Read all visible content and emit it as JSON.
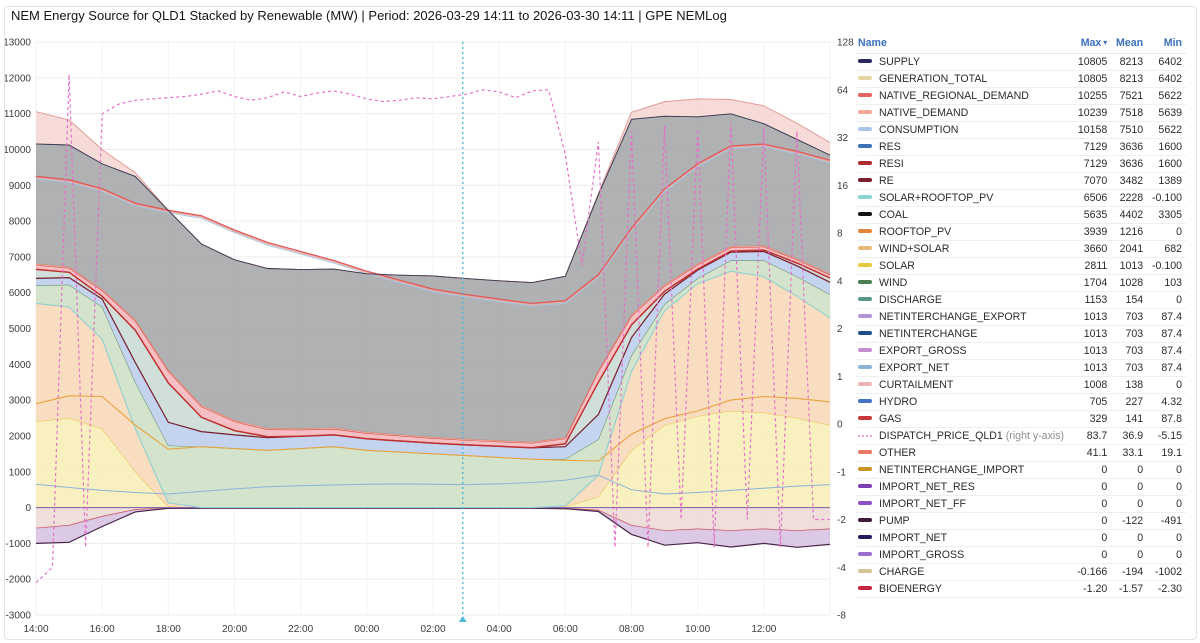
{
  "title": "NEM Energy Source for QLD1 Stacked by Renewable (MW) | Period: 2026-03-29 14:11 to 2026-03-30 14:11 | GPE NEMLog",
  "chart_data": {
    "type": "area",
    "title": "NEM Energy Source for QLD1 Stacked by Renewable (MW)",
    "x_tick_labels": [
      "14:00",
      "16:00",
      "18:00",
      "20:00",
      "22:00",
      "00:00",
      "02:00",
      "04:00",
      "06:00",
      "08:00",
      "10:00",
      "12:00"
    ],
    "hours_span": 24,
    "left_axis": {
      "min": -3000,
      "max": 13000,
      "step": 1000,
      "unit": "MW"
    },
    "right_axis": {
      "scale": "symlog",
      "ticks": [
        128,
        64,
        32,
        16,
        8,
        4,
        2,
        1,
        0,
        -1,
        -2,
        -4,
        -8
      ],
      "label": "DISPATCH_PRICE_QLD1"
    },
    "areas": [
      {
        "name": "SOLAR",
        "fill": "#f8eeb9",
        "line": "#e3c348",
        "values": [
          2400,
          2500,
          2200,
          1000,
          30,
          0,
          0,
          0,
          0,
          0,
          0,
          0,
          0,
          0,
          0,
          0,
          20,
          300,
          1600,
          2300,
          2550,
          2700,
          2650,
          2500,
          2300
        ]
      },
      {
        "name": "ROOFTOP_PV",
        "fill": "#f8d9ba",
        "line": "#edb06a",
        "values": [
          3300,
          3100,
          2500,
          1200,
          100,
          0,
          0,
          0,
          0,
          0,
          0,
          0,
          0,
          0,
          0,
          0,
          30,
          600,
          2200,
          3200,
          3700,
          3900,
          3800,
          3400,
          3000
        ]
      },
      {
        "name": "WIND",
        "fill": "#cfe0c5",
        "line": "#5c8a5c",
        "values": [
          500,
          620,
          900,
          1300,
          1600,
          1700,
          1650,
          1600,
          1650,
          1700,
          1600,
          1550,
          1500,
          1450,
          1400,
          1350,
          1300,
          1000,
          450,
          180,
          150,
          300,
          450,
          550,
          650
        ]
      },
      {
        "name": "HYDRO",
        "fill": "#becfed",
        "line": "#6b8cc8",
        "values": [
          200,
          200,
          220,
          550,
          650,
          420,
          380,
          350,
          340,
          330,
          320,
          310,
          300,
          300,
          310,
          320,
          350,
          700,
          500,
          280,
          230,
          230,
          250,
          300,
          340
        ]
      },
      {
        "name": "DISCHARGE",
        "fill": "#cbdcd6",
        "line": "#6b9e92",
        "values": [
          250,
          150,
          80,
          900,
          1100,
          400,
          120,
          30,
          0,
          0,
          0,
          0,
          0,
          0,
          0,
          0,
          80,
          900,
          350,
          80,
          30,
          30,
          40,
          80,
          120
        ]
      },
      {
        "name": "GAS",
        "fill": "#f4b8bc",
        "line": "#c63939",
        "values": [
          120,
          120,
          160,
          260,
          329,
          300,
          250,
          200,
          180,
          165,
          155,
          145,
          135,
          130,
          130,
          130,
          145,
          300,
          250,
          150,
          115,
          100,
          95,
          90,
          90
        ]
      },
      {
        "name": "OTHER",
        "fill": "#f3b9a8",
        "line": "#e87a64",
        "values": [
          35,
          35,
          36,
          38,
          40,
          40,
          38,
          36,
          35,
          34,
          33,
          33,
          33,
          32,
          32,
          32,
          33,
          38,
          41,
          39,
          37,
          35,
          34,
          33,
          33
        ]
      },
      {
        "name": "COAL",
        "fill": "#a7a8ab",
        "line": "#55555c",
        "values": [
          3350,
          3400,
          3500,
          4000,
          4450,
          4500,
          4480,
          4460,
          4440,
          4430,
          4420,
          4450,
          4500,
          4480,
          4460,
          4450,
          4500,
          4900,
          5450,
          4700,
          4100,
          3700,
          3400,
          3330,
          3310
        ]
      }
    ],
    "curtailment": {
      "name": "CURTAILMENT",
      "fill": "#f5d7d5",
      "line": "#e39b96",
      "values": [
        900,
        700,
        400,
        100,
        0,
        0,
        0,
        0,
        0,
        0,
        0,
        0,
        0,
        0,
        0,
        0,
        0,
        30,
        200,
        400,
        500,
        400,
        500,
        450,
        350
      ]
    },
    "neg_areas": [
      {
        "name": "CHARGE",
        "fill": "#ecd9d4",
        "line": "#cc4c55",
        "values": [
          -580,
          -500,
          -250,
          -60,
          -20,
          -20,
          -20,
          -20,
          -20,
          -20,
          -20,
          -20,
          -20,
          -20,
          -20,
          -20,
          -30,
          -80,
          -500,
          -650,
          -600,
          -650,
          -600,
          -650,
          -600
        ]
      },
      {
        "name": "PUMP",
        "fill": "#d5c0e0",
        "line": "#4a2548",
        "values": [
          -420,
          -470,
          -280,
          -60,
          0,
          0,
          0,
          0,
          0,
          0,
          0,
          0,
          0,
          0,
          0,
          0,
          0,
          -30,
          -250,
          -400,
          -380,
          -450,
          -400,
          -460,
          -430
        ]
      }
    ],
    "lines": [
      {
        "name": "CONSUMPTION",
        "color": "#a9c6e8",
        "width": 1.0,
        "base": "demand",
        "offset": -70
      },
      {
        "name": "NATIVE_DEMAND",
        "color": "#ecaa94",
        "width": 1.0,
        "base": "demand",
        "offset": -35
      },
      {
        "name": "NATIVE_REGIONAL_DEMAND",
        "color": "#e0575c",
        "width": 1.3,
        "values": [
          9250,
          9150,
          8900,
          8500,
          8300,
          8150,
          7750,
          7400,
          7150,
          6900,
          6600,
          6350,
          6100,
          5950,
          5820,
          5700,
          5780,
          6500,
          7800,
          8900,
          9600,
          10100,
          10150,
          9950,
          9700
        ]
      },
      {
        "name": "EXPORT_NET",
        "color": "#8ab4d8",
        "width": 1.0,
        "values": [
          650,
          560,
          480,
          420,
          380,
          450,
          520,
          580,
          610,
          630,
          650,
          660,
          650,
          640,
          660,
          700,
          760,
          900,
          500,
          380,
          420,
          480,
          540,
          600,
          640
        ]
      }
    ],
    "derived_lines": [
      {
        "name": "SOLAR+ROOFTOP_PV",
        "at": "cum:ROOFTOP_PV",
        "color": "#8ed2d4",
        "width": 1.1
      },
      {
        "name": "WIND+SOLAR",
        "at": "sum:SOLAR,WIND",
        "color": "#e8a23f",
        "width": 1.1
      },
      {
        "name": "RE",
        "at": "cum:HYDRO",
        "color": "#7a1f2e",
        "width": 1.2
      },
      {
        "name": "RESI",
        "at": "cum:DISCHARGE",
        "color": "#c03030",
        "width": 1.5
      },
      {
        "name": "SUPPLY",
        "at": "cum:COAL",
        "color": "#3a3a52",
        "width": 0.9
      }
    ],
    "price": {
      "name": "DISPATCH_PRICE_QLD1",
      "axis": "right",
      "color": "#e56fc8",
      "values": [
        -5,
        -4,
        80,
        -3,
        45,
        52,
        55,
        56,
        57,
        58,
        60,
        63,
        58,
        55,
        57,
        62,
        58,
        61,
        63,
        60,
        56,
        54,
        55,
        57,
        56,
        58,
        60,
        64,
        62,
        57,
        63,
        64,
        25,
        5,
        30,
        -3,
        35,
        -3,
        38,
        -2,
        36,
        -3,
        39,
        -2,
        37,
        -3,
        35,
        -2,
        -2
      ]
    },
    "zero_line_color": "#8a6bb0",
    "now_marker": {
      "hours": 12.9,
      "color": "#52b9d8"
    }
  },
  "legend_table": {
    "columns": [
      "Name",
      "Max",
      "Mean",
      "Min"
    ],
    "sort_column": "Max",
    "rows": [
      {
        "name": "SUPPLY",
        "max": "10805",
        "mean": "8213",
        "min": "6402",
        "color": "#2b2a5e"
      },
      {
        "name": "GENERATION_TOTAL",
        "max": "10805",
        "mean": "8213",
        "min": "6402",
        "color": "#e4d5a3"
      },
      {
        "name": "NATIVE_REGIONAL_DEMAND",
        "max": "10255",
        "mean": "7521",
        "min": "5622",
        "color": "#e26161"
      },
      {
        "name": "NATIVE_DEMAND",
        "max": "10239",
        "mean": "7518",
        "min": "5639",
        "color": "#ecaa94"
      },
      {
        "name": "CONSUMPTION",
        "max": "10158",
        "mean": "7510",
        "min": "5622",
        "color": "#a9c6e8"
      },
      {
        "name": "RES",
        "max": "7129",
        "mean": "3636",
        "min": "1600",
        "color": "#3d74b8"
      },
      {
        "name": "RESI",
        "max": "7129",
        "mean": "3636",
        "min": "1600",
        "color": "#b02a30"
      },
      {
        "name": "RE",
        "max": "7070",
        "mean": "3482",
        "min": "1389",
        "color": "#7a1f2e"
      },
      {
        "name": "SOLAR+ROOFTOP_PV",
        "max": "6506",
        "mean": "2228",
        "min": "-0.100",
        "color": "#8ed2d4"
      },
      {
        "name": "COAL",
        "max": "5635",
        "mean": "4402",
        "min": "3305",
        "color": "#141414"
      },
      {
        "name": "ROOFTOP_PV",
        "max": "3939",
        "mean": "1216",
        "min": "0",
        "color": "#e58438"
      },
      {
        "name": "WIND+SOLAR",
        "max": "3660",
        "mean": "2041",
        "min": "682",
        "color": "#e9b97a"
      },
      {
        "name": "SOLAR",
        "max": "2811",
        "mean": "1013",
        "min": "-0.100",
        "color": "#e7c93f"
      },
      {
        "name": "WIND",
        "max": "1704",
        "mean": "1028",
        "min": "103",
        "color": "#4a7d4f"
      },
      {
        "name": "DISCHARGE",
        "max": "1153",
        "mean": "154",
        "min": "0",
        "color": "#55988a"
      },
      {
        "name": "NETINTERCHANGE_EXPORT",
        "max": "1013",
        "mean": "703",
        "min": "87.4",
        "color": "#b294d8"
      },
      {
        "name": "NETINTERCHANGE",
        "max": "1013",
        "mean": "703",
        "min": "87.4",
        "color": "#1f4e8c"
      },
      {
        "name": "EXPORT_GROSS",
        "max": "1013",
        "mean": "703",
        "min": "87.4",
        "color": "#c58cd0"
      },
      {
        "name": "EXPORT_NET",
        "max": "1013",
        "mean": "703",
        "min": "87.4",
        "color": "#8ab4d8"
      },
      {
        "name": "CURTAILMENT",
        "max": "1008",
        "mean": "138",
        "min": "0",
        "color": "#eeb3b3"
      },
      {
        "name": "HYDRO",
        "max": "705",
        "mean": "227",
        "min": "4.32",
        "color": "#4472c4"
      },
      {
        "name": "GAS",
        "max": "329",
        "mean": "141",
        "min": "87.8",
        "color": "#c63939"
      },
      {
        "name": "DISPATCH_PRICE_QLD1",
        "note": "(right y-axis)",
        "dotted": true,
        "max": "83.7",
        "mean": "36.9",
        "min": "-5.15",
        "color": "#e9a8d0"
      },
      {
        "name": "OTHER",
        "max": "41.1",
        "mean": "33.1",
        "min": "19.1",
        "color": "#e87a64"
      },
      {
        "name": "NETINTERCHANGE_IMPORT",
        "max": "0",
        "mean": "0",
        "min": "0",
        "color": "#c8961e"
      },
      {
        "name": "IMPORT_NET_RES",
        "max": "0",
        "mean": "0",
        "min": "0",
        "color": "#7a3fb5"
      },
      {
        "name": "IMPORT_NET_FF",
        "max": "0",
        "mean": "0",
        "min": "0",
        "color": "#8a4fc5"
      },
      {
        "name": "PUMP",
        "max": "0",
        "mean": "-122",
        "min": "-491",
        "color": "#3f1b3a"
      },
      {
        "name": "IMPORT_NET",
        "max": "0",
        "mean": "0",
        "min": "0",
        "color": "#241a5e"
      },
      {
        "name": "IMPORT_GROSS",
        "max": "0",
        "mean": "0",
        "min": "0",
        "color": "#9a6fd0"
      },
      {
        "name": "CHARGE",
        "max": "-0.166",
        "mean": "-194",
        "min": "-1002",
        "color": "#d6c498"
      },
      {
        "name": "BIOENERGY",
        "max": "-1.20",
        "mean": "-1.57",
        "min": "-2.30",
        "color": "#c4273e"
      }
    ]
  }
}
